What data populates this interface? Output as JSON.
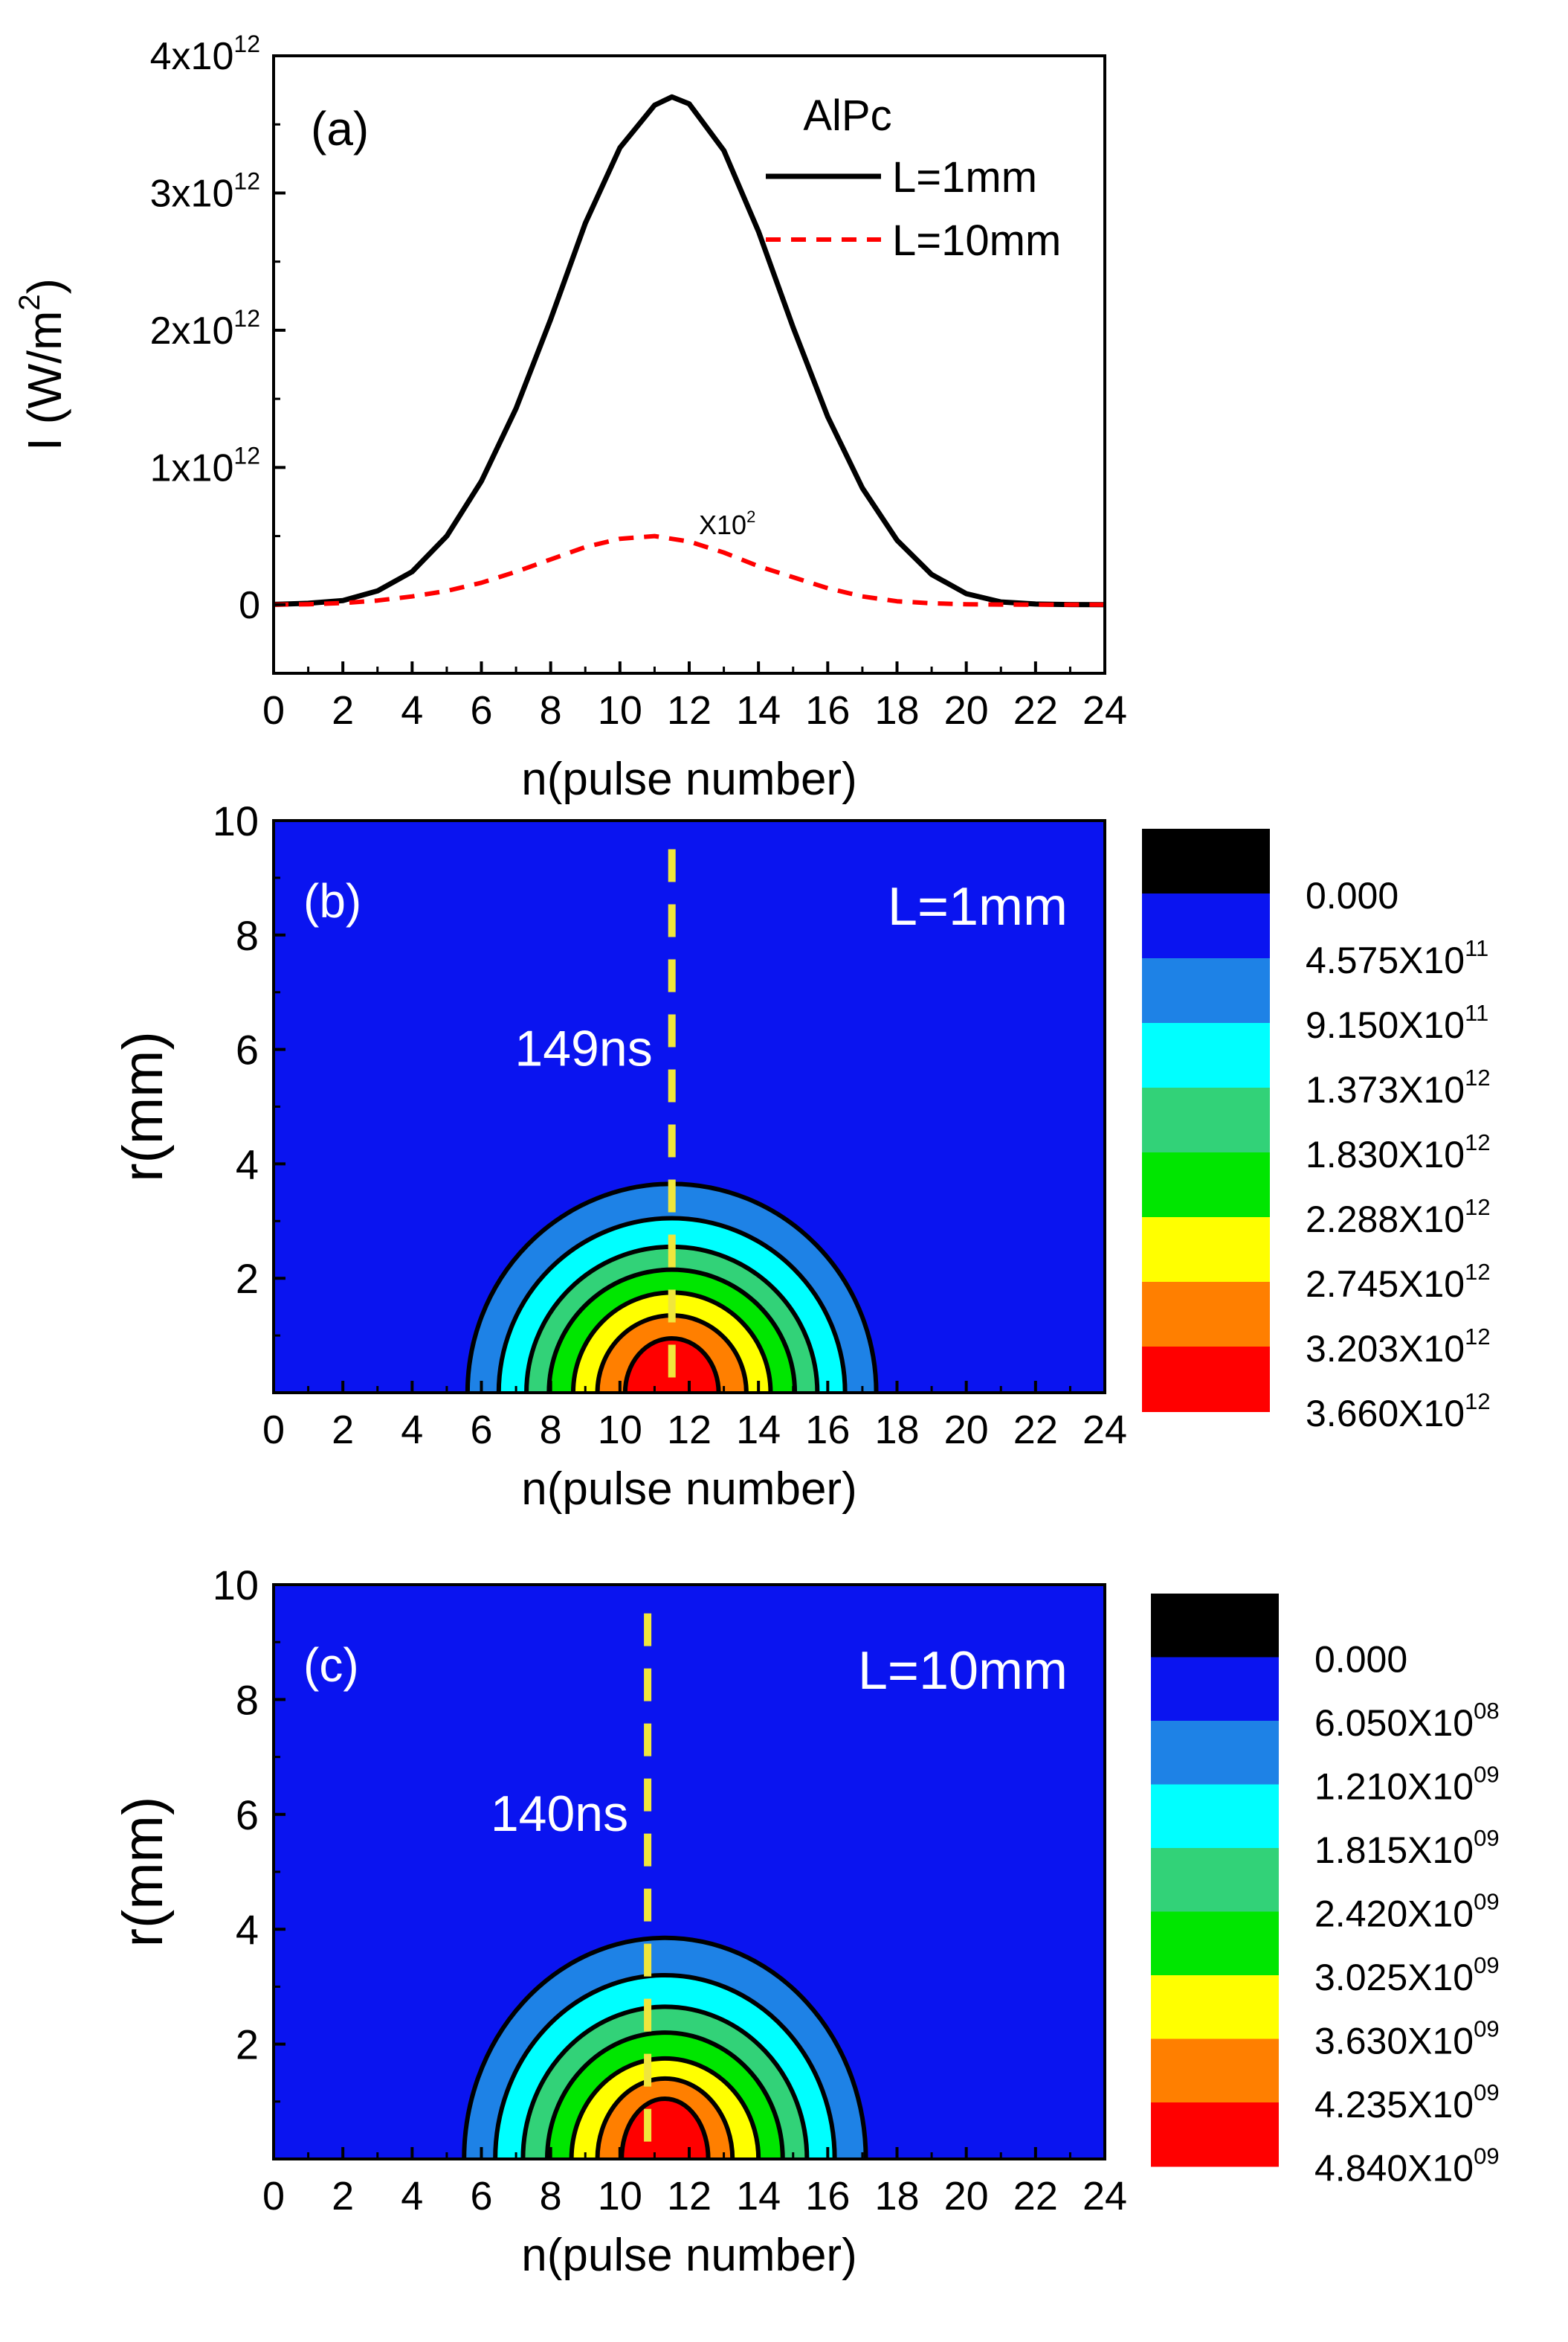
{
  "chart_data": [
    {
      "type": "line",
      "panel": "(a)",
      "xlabel": "n(pulse number)",
      "ylabel": "I (W/m2)",
      "ylabel_text": "I (W/m",
      "ylabel_sup": "2",
      "ylabel_close": ")",
      "xlim": [
        0,
        24
      ],
      "ylim": [
        -500000000000.0,
        4000000000000.0
      ],
      "x_ticks": [
        "0",
        "2",
        "4",
        "6",
        "8",
        "10",
        "12",
        "14",
        "16",
        "18",
        "20",
        "22",
        "24"
      ],
      "y_ticks": [
        {
          "base": "0",
          "exp": ""
        },
        {
          "base": "1x10",
          "exp": "12"
        },
        {
          "base": "2x10",
          "exp": "12"
        },
        {
          "base": "3x10",
          "exp": "12"
        },
        {
          "base": "4x10",
          "exp": "12"
        }
      ],
      "legend_title": "AlPc",
      "legend_position": "top-right",
      "annotation": {
        "text": "X10",
        "sup": "2"
      },
      "series": [
        {
          "name": "L=1mm",
          "style": "solid",
          "color": "#000000",
          "x": [
            0,
            1,
            2,
            3,
            4,
            5,
            6,
            7,
            8,
            9,
            10,
            11,
            11.5,
            12,
            13,
            14,
            15,
            16,
            17,
            18,
            19,
            20,
            21,
            22,
            23,
            24
          ],
          "y": [
            2000000000.0,
            10000000000.0,
            30000000000.0,
            100000000000.0,
            240000000000.0,
            500000000000.0,
            900000000000.0,
            1430000000000.0,
            2080000000000.0,
            2780000000000.0,
            3330000000000.0,
            3640000000000.0,
            3700000000000.0,
            3650000000000.0,
            3310000000000.0,
            2720000000000.0,
            2020000000000.0,
            1370000000000.0,
            850000000000.0,
            470000000000.0,
            220000000000.0,
            80000000000.0,
            20000000000.0,
            5000000000.0,
            1000000000.0,
            0
          ]
        },
        {
          "name": "L=10mm",
          "style": "dashed",
          "color": "#ff0000",
          "x": [
            0,
            1,
            2,
            3,
            4,
            5,
            6,
            7,
            8,
            9,
            10,
            11,
            12,
            13,
            14,
            15,
            16,
            17,
            18,
            19,
            20,
            21,
            22,
            23,
            24
          ],
          "y": [
            0,
            3000000000.0,
            12000000000.0,
            30000000000.0,
            60000000000.0,
            100000000000.0,
            160000000000.0,
            240000000000.0,
            330000000000.0,
            420000000000.0,
            480000000000.0,
            500000000000.0,
            460000000000.0,
            380000000000.0,
            280000000000.0,
            200000000000.0,
            120000000000.0,
            60000000000.0,
            25000000000.0,
            10000000000.0,
            3000000000.0,
            1000000000.0,
            0,
            0,
            0
          ]
        }
      ]
    },
    {
      "type": "heatmap",
      "panel": "(b)",
      "label": "L=1mm",
      "xlabel": "n(pulse number)",
      "ylabel": "r(mm)",
      "xlim": [
        0,
        24
      ],
      "ylim": [
        0,
        10
      ],
      "x_ticks": [
        "0",
        "2",
        "4",
        "6",
        "8",
        "10",
        "12",
        "14",
        "16",
        "18",
        "20",
        "22",
        "24"
      ],
      "y_ticks": [
        "2",
        "4",
        "6",
        "8",
        "10"
      ],
      "center_n": 11.5,
      "dashed_line_n": 11.5,
      "dashed_line_label": "149ns",
      "contours": [
        {
          "rx": 5.9,
          "r": 3.65,
          "color": "#1e82e6"
        },
        {
          "rx": 5.0,
          "r": 3.05,
          "color": "#00ffff"
        },
        {
          "rx": 4.2,
          "r": 2.55,
          "color": "#32d278"
        },
        {
          "rx": 3.55,
          "r": 2.15,
          "color": "#00e600"
        },
        {
          "rx": 2.85,
          "r": 1.75,
          "color": "#ffff00"
        },
        {
          "rx": 2.15,
          "r": 1.35,
          "color": "#ff7f00"
        },
        {
          "rx": 1.35,
          "r": 0.95,
          "color": "#ff0000"
        }
      ],
      "background_color": "#0a14f0",
      "colorbar": {
        "colors": [
          "#000000",
          "#0a14f0",
          "#1e82e6",
          "#00ffff",
          "#32d278",
          "#00e600",
          "#ffff00",
          "#ff7f00",
          "#ff0000"
        ],
        "labels": [
          {
            "base": "0.000",
            "exp": ""
          },
          {
            "base": "4.575X10",
            "exp": "11"
          },
          {
            "base": "9.150X10",
            "exp": "11"
          },
          {
            "base": "1.373X10",
            "exp": "12"
          },
          {
            "base": "1.830X10",
            "exp": "12"
          },
          {
            "base": "2.288X10",
            "exp": "12"
          },
          {
            "base": "2.745X10",
            "exp": "12"
          },
          {
            "base": "3.203X10",
            "exp": "12"
          },
          {
            "base": "3.660X10",
            "exp": "12"
          }
        ]
      }
    },
    {
      "type": "heatmap",
      "panel": "(c)",
      "label": "L=10mm",
      "xlabel": "n(pulse number)",
      "ylabel": "r(mm)",
      "xlim": [
        0,
        24
      ],
      "ylim": [
        0,
        10
      ],
      "x_ticks": [
        "0",
        "2",
        "4",
        "6",
        "8",
        "10",
        "12",
        "14",
        "16",
        "18",
        "20",
        "22",
        "24"
      ],
      "y_ticks": [
        "2",
        "4",
        "6",
        "8",
        "10"
      ],
      "center_n": 11.3,
      "dashed_line_n": 10.8,
      "dashed_line_label": "140ns",
      "contours": [
        {
          "rx": 5.8,
          "r": 3.85,
          "color": "#1e82e6"
        },
        {
          "rx": 4.9,
          "r": 3.2,
          "color": "#00ffff"
        },
        {
          "rx": 4.1,
          "r": 2.65,
          "color": "#32d278"
        },
        {
          "rx": 3.4,
          "r": 2.2,
          "color": "#00e600"
        },
        {
          "rx": 2.7,
          "r": 1.75,
          "color": "#ffff00"
        },
        {
          "rx": 1.95,
          "r": 1.4,
          "color": "#ff7f00"
        },
        {
          "rx": 1.25,
          "r": 1.05,
          "color": "#ff0000"
        }
      ],
      "background_color": "#0a14f0",
      "colorbar": {
        "colors": [
          "#000000",
          "#0a14f0",
          "#1e82e6",
          "#00ffff",
          "#32d278",
          "#00e600",
          "#ffff00",
          "#ff7f00",
          "#ff0000"
        ],
        "labels": [
          {
            "base": "0.000",
            "exp": ""
          },
          {
            "base": "6.050X10",
            "exp": "08"
          },
          {
            "base": "1.210X10",
            "exp": "09"
          },
          {
            "base": "1.815X10",
            "exp": "09"
          },
          {
            "base": "2.420X10",
            "exp": "09"
          },
          {
            "base": "3.025X10",
            "exp": "09"
          },
          {
            "base": "3.630X10",
            "exp": "09"
          },
          {
            "base": "4.235X10",
            "exp": "09"
          },
          {
            "base": "4.840X10",
            "exp": "09"
          }
        ]
      }
    }
  ]
}
